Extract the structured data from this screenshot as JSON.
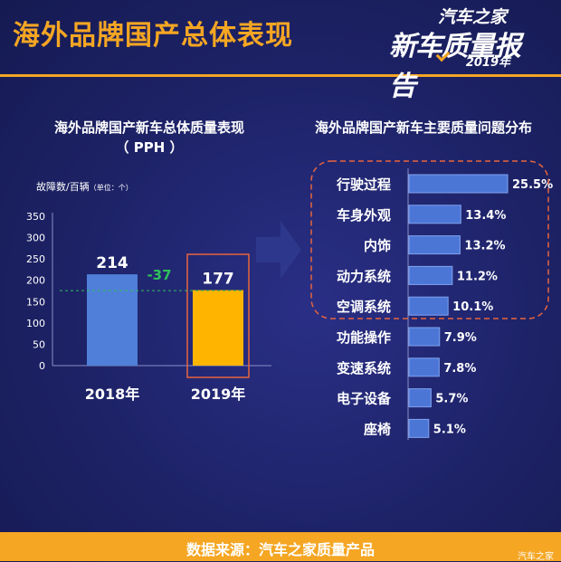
{
  "header": {
    "title": "海外品牌国产总体表现",
    "brand_top": "汽车之家",
    "brand_main": "新车质量报告",
    "brand_year": "2019年"
  },
  "footer": {
    "source": "数据来源：汽车之家质量产品",
    "watermark": "汽车之家"
  },
  "colors": {
    "bar_2018": "#4f7fd8",
    "bar_2019": "#ffb400",
    "accent": "#f5a623",
    "diff": "#2fc05a",
    "hbar": "#4c76d6"
  },
  "chart_data": [
    {
      "type": "bar",
      "title": "海外品牌国产新车总体质量表现\n（ PPH ）",
      "title_lines": [
        "海外品牌国产新车总体质量表现",
        "（ PPH ）"
      ],
      "ylabel": "故障数/百辆",
      "unit_note": "（单位：个）",
      "categories": [
        "2018年",
        "2019年"
      ],
      "values": [
        214,
        177
      ],
      "ylim": [
        0,
        350
      ],
      "yticks": [
        0,
        50,
        100,
        150,
        200,
        250,
        300,
        350
      ],
      "diff_label": "-37",
      "highlight": "2019年",
      "grid": false
    },
    {
      "type": "bar",
      "orientation": "horizontal",
      "title": "海外品牌国产新车主要质量问题分布",
      "categories": [
        "行驶过程",
        "车身外观",
        "内饰",
        "动力系统",
        "空调系统",
        "功能操作",
        "变速系统",
        "电子设备",
        "座椅"
      ],
      "values": [
        25.5,
        13.4,
        13.2,
        11.2,
        10.1,
        7.9,
        7.8,
        5.7,
        5.1
      ],
      "value_labels": [
        "25.5%",
        "13.4%",
        "13.2%",
        "11.2%",
        "10.1%",
        "7.9%",
        "7.8%",
        "5.7%",
        "5.1%"
      ],
      "highlight_top": 5,
      "grid": false
    }
  ]
}
